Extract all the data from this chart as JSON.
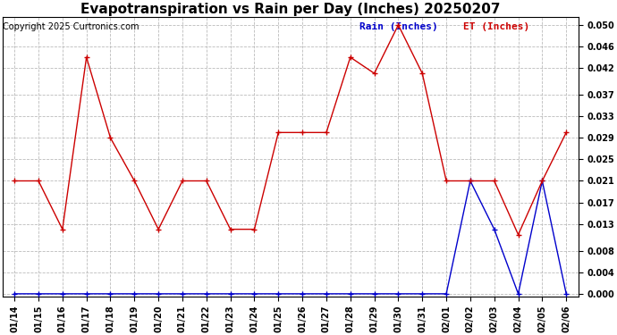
{
  "title": "Evapotranspiration vs Rain per Day (Inches) 20250207",
  "copyright": "Copyright 2025 Curtronics.com",
  "legend_rain": "Rain (Inches)",
  "legend_et": "ET (Inches)",
  "x_labels": [
    "01/14",
    "01/15",
    "01/16",
    "01/17",
    "01/18",
    "01/19",
    "01/20",
    "01/21",
    "01/22",
    "01/23",
    "01/24",
    "01/25",
    "01/26",
    "01/27",
    "01/28",
    "01/29",
    "01/30",
    "01/31",
    "02/01",
    "02/02",
    "02/03",
    "02/04",
    "02/05",
    "02/06"
  ],
  "et_values": [
    0.021,
    0.021,
    0.012,
    0.044,
    0.029,
    0.021,
    0.012,
    0.021,
    0.021,
    0.012,
    0.012,
    0.03,
    0.03,
    0.03,
    0.044,
    0.041,
    0.05,
    0.041,
    0.021,
    0.021,
    0.021,
    0.011,
    0.021,
    0.03
  ],
  "rain_values": [
    0.0,
    0.0,
    0.0,
    0.0,
    0.0,
    0.0,
    0.0,
    0.0,
    0.0,
    0.0,
    0.0,
    0.0,
    0.0,
    0.0,
    0.0,
    0.0,
    0.0,
    0.0,
    0.0,
    0.021,
    0.012,
    0.0,
    0.021,
    0.0
  ],
  "ylim_min": -0.0005,
  "ylim_max": 0.0515,
  "yticks": [
    0.0,
    0.004,
    0.008,
    0.013,
    0.017,
    0.021,
    0.025,
    0.029,
    0.033,
    0.037,
    0.042,
    0.046,
    0.05
  ],
  "et_color": "#cc0000",
  "rain_color": "#0000cc",
  "grid_color": "#bbbbbb",
  "background_color": "#ffffff",
  "title_fontsize": 11,
  "copyright_fontsize": 7,
  "legend_fontsize": 8,
  "tick_fontsize": 7
}
